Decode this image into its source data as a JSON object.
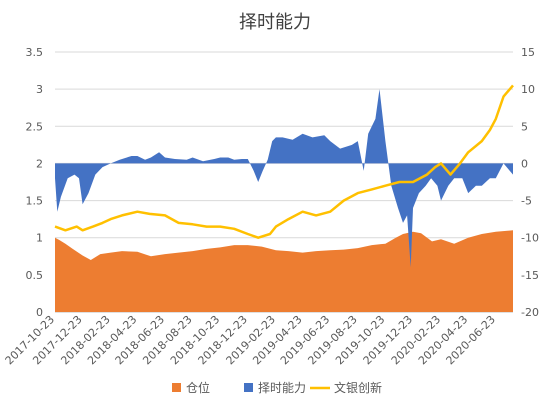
{
  "chart_data": {
    "type": "area",
    "title": "择时能力",
    "left_axis": {
      "min": 0,
      "max": 3.5,
      "ticks": [
        "0",
        "0.5",
        "1",
        "1.5",
        "2",
        "2.5",
        "3",
        "3.5"
      ]
    },
    "right_axis": {
      "min": -20,
      "max": 15,
      "ticks": [
        "-20",
        "-15",
        "-10",
        "-5",
        "0",
        "5",
        "10",
        "15"
      ]
    },
    "x_start": "2017-10-23",
    "x_end": "2020-07-31",
    "x_ticks": [
      "2017-10-23",
      "2017-12-23",
      "2018-02-23",
      "2018-04-23",
      "2018-06-23",
      "2018-08-23",
      "2018-10-23",
      "2018-12-23",
      "2019-02-23",
      "2019-04-23",
      "2019-06-23",
      "2019-08-23",
      "2019-10-23",
      "2019-12-23",
      "2020-02-23",
      "2020-04-23",
      "2020-06-23"
    ],
    "grid": true,
    "legend_position": "bottom",
    "series": [
      {
        "name": "仓位",
        "axis": "left",
        "kind": "area",
        "color": "#ED7D31",
        "x": [
          "2017-10-23",
          "2017-11-01",
          "2017-11-15",
          "2017-12-01",
          "2017-12-23",
          "2018-01-10",
          "2018-01-31",
          "2018-02-23",
          "2018-03-20",
          "2018-04-23",
          "2018-05-23",
          "2018-06-23",
          "2018-07-23",
          "2018-08-23",
          "2018-09-23",
          "2018-10-23",
          "2018-11-23",
          "2018-12-23",
          "2019-01-23",
          "2019-02-23",
          "2019-03-23",
          "2019-04-23",
          "2019-05-23",
          "2019-06-23",
          "2019-07-23",
          "2019-08-23",
          "2019-09-23",
          "2019-10-23",
          "2019-11-15",
          "2019-12-01",
          "2019-12-23",
          "2020-01-10",
          "2020-02-03",
          "2020-02-23",
          "2020-03-23",
          "2020-04-23",
          "2020-05-23",
          "2020-06-23",
          "2020-07-31"
        ],
        "values": [
          1.0,
          0.97,
          0.92,
          0.85,
          0.76,
          0.7,
          0.78,
          0.8,
          0.82,
          0.81,
          0.75,
          0.78,
          0.8,
          0.82,
          0.85,
          0.87,
          0.9,
          0.9,
          0.88,
          0.83,
          0.82,
          0.8,
          0.82,
          0.83,
          0.84,
          0.86,
          0.9,
          0.92,
          1.0,
          1.05,
          1.08,
          1.06,
          0.95,
          0.98,
          0.92,
          1.0,
          1.05,
          1.08,
          1.1
        ]
      },
      {
        "name": "择时能力",
        "axis": "right",
        "kind": "area",
        "color": "#4472C4",
        "x": [
          "2017-10-23",
          "2017-10-28",
          "2017-11-05",
          "2017-11-20",
          "2017-12-05",
          "2017-12-15",
          "2017-12-23",
          "2018-01-05",
          "2018-01-20",
          "2018-02-05",
          "2018-02-23",
          "2018-03-15",
          "2018-04-10",
          "2018-04-23",
          "2018-05-10",
          "2018-05-23",
          "2018-06-10",
          "2018-06-23",
          "2018-07-15",
          "2018-08-10",
          "2018-08-23",
          "2018-09-15",
          "2018-10-10",
          "2018-10-23",
          "2018-11-10",
          "2018-11-23",
          "2018-12-10",
          "2018-12-23",
          "2019-01-05",
          "2019-01-15",
          "2019-01-25",
          "2019-02-05",
          "2019-02-15",
          "2019-02-23",
          "2019-03-10",
          "2019-04-01",
          "2019-04-23",
          "2019-05-15",
          "2019-06-10",
          "2019-06-23",
          "2019-07-15",
          "2019-08-10",
          "2019-08-23",
          "2019-09-05",
          "2019-09-15",
          "2019-10-01",
          "2019-10-10",
          "2019-10-23",
          "2019-11-05",
          "2019-11-20",
          "2019-12-01",
          "2019-12-10",
          "2019-12-18",
          "2019-12-23",
          "2020-01-05",
          "2020-01-20",
          "2020-02-01",
          "2020-02-15",
          "2020-02-23",
          "2020-03-10",
          "2020-03-23",
          "2020-04-10",
          "2020-04-23",
          "2020-05-10",
          "2020-05-23",
          "2020-06-10",
          "2020-06-23",
          "2020-07-10",
          "2020-07-31"
        ],
        "values": [
          -2,
          -6.5,
          -4.5,
          -2,
          -1.5,
          -2,
          -5.5,
          -4,
          -1.5,
          -0.5,
          0,
          0.5,
          1,
          1,
          0.5,
          0.8,
          1.5,
          0.8,
          0.6,
          0.5,
          0.8,
          0.3,
          0.6,
          0.8,
          0.8,
          0.5,
          0.6,
          0.6,
          -1,
          -2.5,
          -1,
          0.5,
          3,
          3.5,
          3.5,
          3.2,
          4,
          3.5,
          3.8,
          3,
          2,
          2.5,
          3,
          -1,
          4,
          6,
          10,
          3,
          -3,
          -6,
          -8,
          -7,
          -14,
          -6,
          -4,
          -3,
          -2,
          -3,
          -5,
          -3,
          -2,
          -2,
          -4,
          -3,
          -3,
          -2,
          -2,
          0,
          -1.5
        ]
      },
      {
        "name": "文银创新",
        "axis": "right",
        "kind": "line",
        "color": "#FFC000",
        "x": [
          "2017-10-23",
          "2017-11-15",
          "2017-12-10",
          "2017-12-23",
          "2018-01-15",
          "2018-02-05",
          "2018-02-23",
          "2018-03-20",
          "2018-04-23",
          "2018-05-20",
          "2018-06-23",
          "2018-07-23",
          "2018-08-23",
          "2018-09-23",
          "2018-10-23",
          "2018-11-23",
          "2018-12-23",
          "2019-01-15",
          "2019-02-10",
          "2019-02-23",
          "2019-03-23",
          "2019-04-23",
          "2019-05-23",
          "2019-06-23",
          "2019-07-23",
          "2019-08-23",
          "2019-09-23",
          "2019-10-23",
          "2019-11-23",
          "2019-12-23",
          "2020-01-23",
          "2020-02-10",
          "2020-02-23",
          "2020-03-15",
          "2020-04-05",
          "2020-04-23",
          "2020-05-23",
          "2020-06-10",
          "2020-06-23",
          "2020-07-10",
          "2020-07-31"
        ],
        "values": [
          -8.5,
          -9,
          -8.5,
          -9,
          -8.5,
          -8,
          -7.5,
          -7,
          -6.5,
          -6.8,
          -7,
          -8,
          -8.2,
          -8.5,
          -8.5,
          -8.8,
          -9.5,
          -10,
          -9.5,
          -8.5,
          -7.5,
          -6.5,
          -7,
          -6.5,
          -5,
          -4,
          -3.5,
          -3,
          -2.5,
          -2.5,
          -1.5,
          -0.5,
          0,
          -1.5,
          0,
          1.5,
          3,
          4.5,
          6,
          9,
          10.5
        ]
      }
    ]
  }
}
